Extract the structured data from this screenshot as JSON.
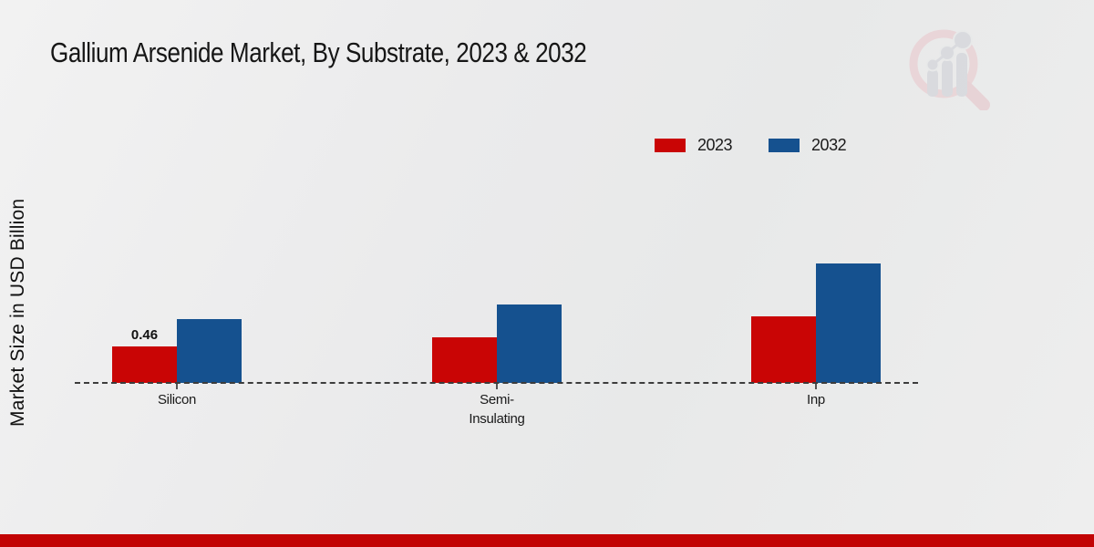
{
  "theme": {
    "footer_color": "#c20404",
    "background": "#ebecec",
    "watermark_circle_color": "#e9c5ca",
    "watermark_bars_color": "#ccced6"
  },
  "chart_data": {
    "type": "bar",
    "title": "Gallium Arsenide Market, By Substrate, 2023 & 2032",
    "xlabel": "",
    "ylabel": "Market Size in USD Billion",
    "categories": [
      "Silicon",
      "Semi-\nInsulating",
      "Inp"
    ],
    "series": [
      {
        "name": "2023",
        "color": "#c90505",
        "values": [
          0.46,
          0.58,
          0.84
        ]
      },
      {
        "name": "2032",
        "color": "#15518f",
        "values": [
          0.8,
          0.99,
          1.5
        ]
      }
    ],
    "annotations": [
      {
        "series_index": 0,
        "category_index": 0,
        "text": "0.46"
      }
    ],
    "legend_position": "top-right",
    "legend_entries": [
      "2023",
      "2032"
    ],
    "grid": false,
    "baseline_style": "dashed",
    "ylim": [
      0,
      1.6
    ]
  }
}
